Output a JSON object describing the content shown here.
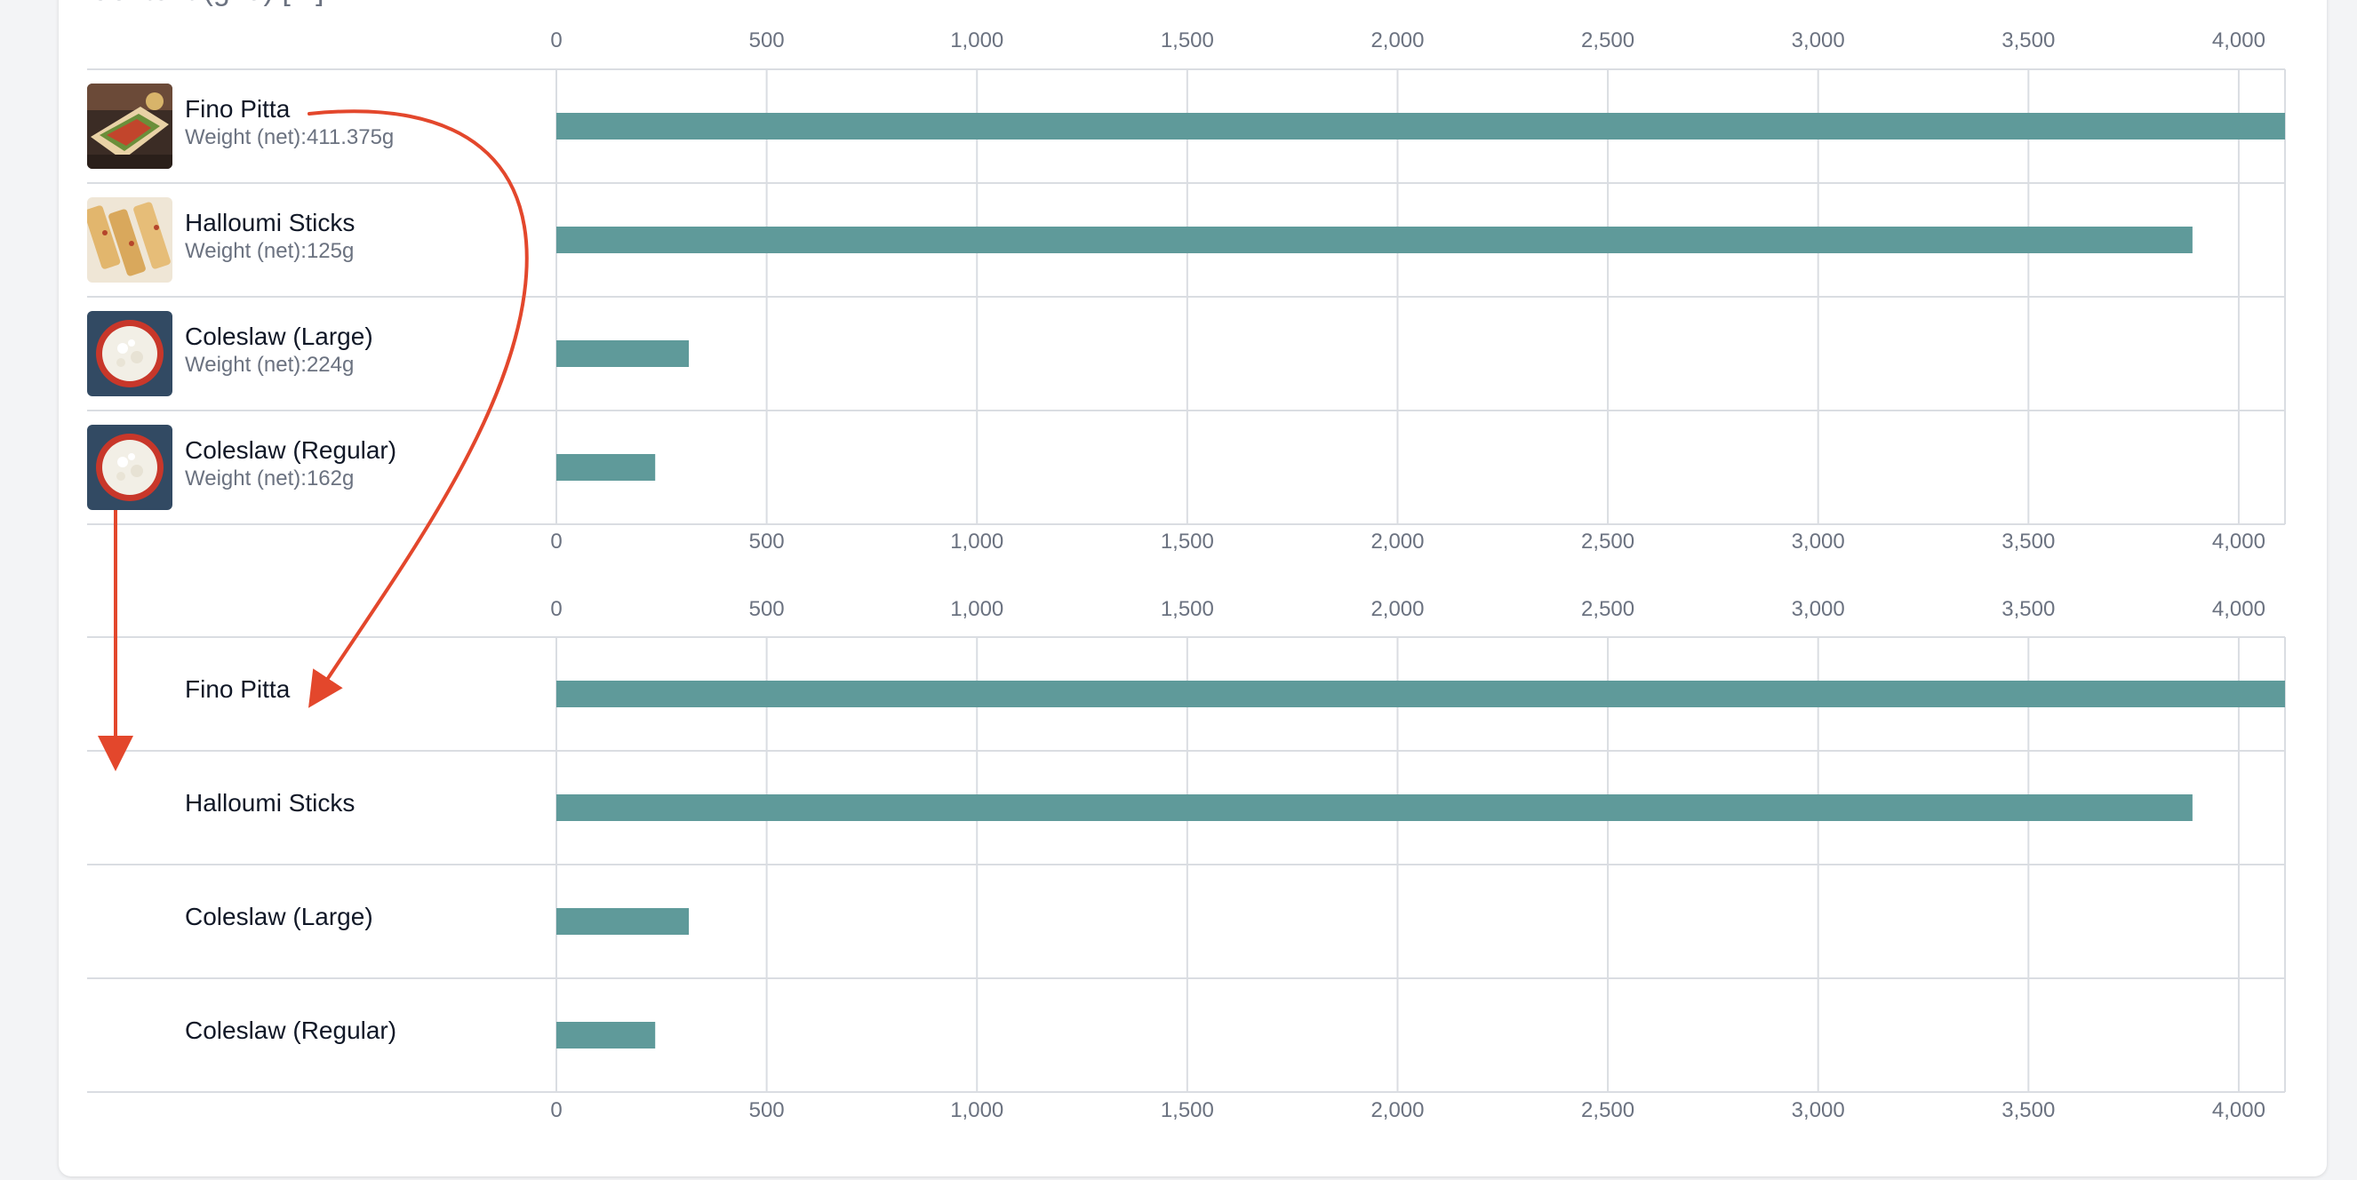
{
  "header": {
    "partial_title": "Content (grid) [...]"
  },
  "chart_data": [
    {
      "type": "bar",
      "orientation": "horizontal",
      "categories": [
        "Fino Pitta",
        "Halloumi Sticks",
        "Coleslaw (Large)",
        "Coleslaw (Regular)"
      ],
      "category_subtitles": [
        "Weight (net):411.375g",
        "Weight (net):125g",
        "Weight (net):224g",
        "Weight (net):162g"
      ],
      "category_images": [
        "pitta-wrap-photo",
        "halloumi-sticks-photo",
        "coleslaw-bowl-photo",
        "coleslaw-bowl-photo"
      ],
      "values": [
        4150,
        3890,
        315,
        235
      ],
      "xlim": [
        0,
        4110
      ],
      "xticks": [
        0,
        500,
        1000,
        1500,
        2000,
        2500,
        3000,
        3500,
        4000
      ],
      "xtick_labels": [
        "0",
        "500",
        "1,000",
        "1,500",
        "2,000",
        "2,500",
        "3,000",
        "3,500",
        "4,000"
      ],
      "grid": true,
      "bar_color": "#5f9a9a"
    },
    {
      "type": "bar",
      "orientation": "horizontal",
      "categories": [
        "Fino Pitta",
        "Halloumi Sticks",
        "Coleslaw (Large)",
        "Coleslaw (Regular)"
      ],
      "category_subtitles": [
        "Weight (net):411.375g",
        "Weight (net):125g",
        "Weight (net):224g",
        "Weight (net):162g"
      ],
      "values": [
        4150,
        3890,
        315,
        235
      ],
      "xlim": [
        0,
        4110
      ],
      "xticks": [
        0,
        500,
        1000,
        1500,
        2000,
        2500,
        3000,
        3500,
        4000
      ],
      "xtick_labels": [
        "0",
        "500",
        "1,000",
        "1,500",
        "2,000",
        "2,500",
        "3,000",
        "3,500",
        "4,000"
      ],
      "grid": true,
      "bar_color": "#5f9a9a"
    }
  ],
  "colors": {
    "bar": "#5f9a9a",
    "arrow": "#e3472c",
    "grid": "#dadde2",
    "tick_text": "#6b7280"
  }
}
